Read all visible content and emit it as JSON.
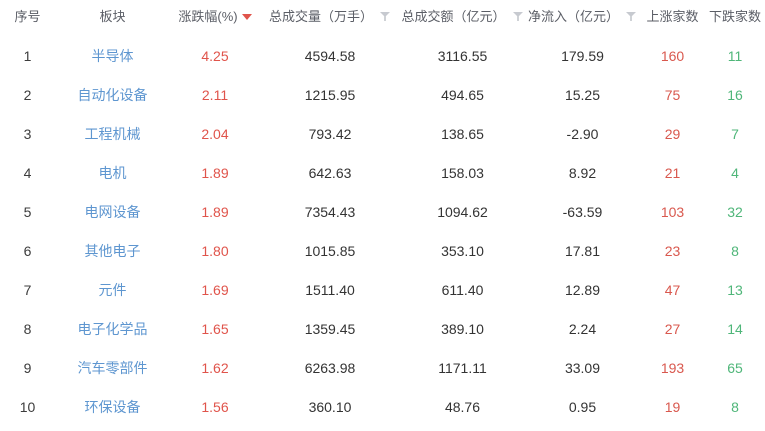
{
  "table": {
    "columns": [
      {
        "key": "index",
        "label": "序号",
        "sortable": false,
        "sort": null,
        "filter_icon": false
      },
      {
        "key": "sector",
        "label": "板块",
        "sortable": false,
        "sort": null,
        "filter_icon": false
      },
      {
        "key": "change_pct",
        "label": "涨跌幅(%)",
        "sortable": true,
        "sort": "desc",
        "filter_icon": false
      },
      {
        "key": "volume",
        "label": "总成交量（万手）",
        "sortable": true,
        "sort": null,
        "filter_icon": true
      },
      {
        "key": "turnover",
        "label": "总成交额（亿元）",
        "sortable": true,
        "sort": null,
        "filter_icon": true
      },
      {
        "key": "net_inflow",
        "label": "净流入（亿元）",
        "sortable": true,
        "sort": null,
        "filter_icon": true
      },
      {
        "key": "gainers",
        "label": "上涨家数",
        "sortable": false,
        "sort": null,
        "filter_icon": false
      },
      {
        "key": "losers",
        "label": "下跌家数",
        "sortable": false,
        "sort": null,
        "filter_icon": false
      }
    ],
    "rows": [
      {
        "index": "1",
        "sector": "半导体",
        "change_pct": "4.25",
        "volume": "4594.58",
        "turnover": "3116.55",
        "net_inflow": "179.59",
        "gainers": "160",
        "losers": "11"
      },
      {
        "index": "2",
        "sector": "自动化设备",
        "change_pct": "2.11",
        "volume": "1215.95",
        "turnover": "494.65",
        "net_inflow": "15.25",
        "gainers": "75",
        "losers": "16"
      },
      {
        "index": "3",
        "sector": "工程机械",
        "change_pct": "2.04",
        "volume": "793.42",
        "turnover": "138.65",
        "net_inflow": "-2.90",
        "gainers": "29",
        "losers": "7"
      },
      {
        "index": "4",
        "sector": "电机",
        "change_pct": "1.89",
        "volume": "642.63",
        "turnover": "158.03",
        "net_inflow": "8.92",
        "gainers": "21",
        "losers": "4"
      },
      {
        "index": "5",
        "sector": "电网设备",
        "change_pct": "1.89",
        "volume": "7354.43",
        "turnover": "1094.62",
        "net_inflow": "-63.59",
        "gainers": "103",
        "losers": "32"
      },
      {
        "index": "6",
        "sector": "其他电子",
        "change_pct": "1.80",
        "volume": "1015.85",
        "turnover": "353.10",
        "net_inflow": "17.81",
        "gainers": "23",
        "losers": "8"
      },
      {
        "index": "7",
        "sector": "元件",
        "change_pct": "1.69",
        "volume": "1511.40",
        "turnover": "611.40",
        "net_inflow": "12.89",
        "gainers": "47",
        "losers": "13"
      },
      {
        "index": "8",
        "sector": "电子化学品",
        "change_pct": "1.65",
        "volume": "1359.45",
        "turnover": "389.10",
        "net_inflow": "2.24",
        "gainers": "27",
        "losers": "14"
      },
      {
        "index": "9",
        "sector": "汽车零部件",
        "change_pct": "1.62",
        "volume": "6263.98",
        "turnover": "1171.11",
        "net_inflow": "33.09",
        "gainers": "193",
        "losers": "65"
      },
      {
        "index": "10",
        "sector": "环保设备",
        "change_pct": "1.56",
        "volume": "360.10",
        "turnover": "48.76",
        "net_inflow": "0.95",
        "gainers": "19",
        "losers": "8"
      }
    ]
  },
  "colors": {
    "sector_link_blue": "#5e96d0",
    "rise_red": "#e0544b",
    "fall_green": "#4fb679",
    "body_text": "#333333",
    "header_text": "#5b5e66",
    "filter_icon_gray": "#c7cad0",
    "background": "#ffffff"
  }
}
